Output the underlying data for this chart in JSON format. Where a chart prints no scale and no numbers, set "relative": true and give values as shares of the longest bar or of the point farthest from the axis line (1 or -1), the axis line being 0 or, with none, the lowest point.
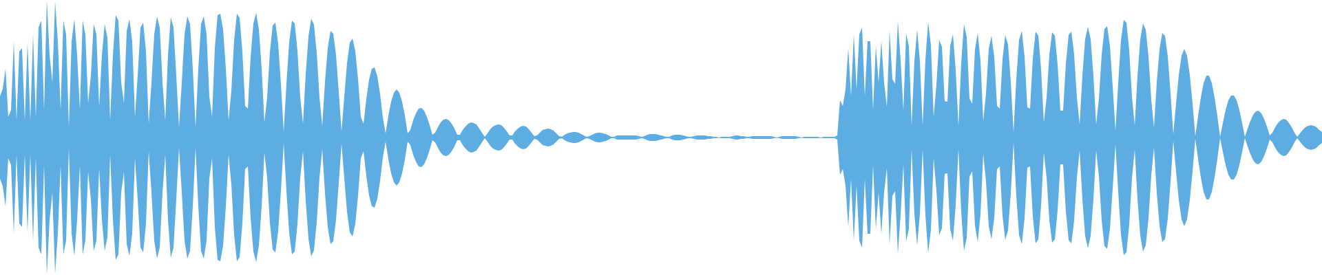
{
  "chart_data": {
    "type": "area",
    "relative": true,
    "categories": [
      null,
      null,
      null,
      null,
      null,
      null,
      null,
      null,
      null,
      null,
      null,
      null,
      null,
      null,
      null,
      null,
      null,
      null,
      null,
      null,
      null,
      null,
      null,
      null,
      null,
      null,
      null,
      null,
      null,
      null,
      null,
      null,
      null,
      null,
      null,
      null,
      null,
      null,
      null,
      null,
      null,
      null,
      null,
      null,
      null,
      null,
      null,
      null,
      null,
      null,
      null,
      null,
      null,
      null,
      null,
      null,
      null,
      null,
      null,
      null,
      null,
      null,
      null,
      null,
      null,
      null,
      null,
      null,
      null,
      null,
      null,
      null,
      null,
      null,
      null,
      null,
      null,
      null,
      null,
      null,
      null,
      null,
      null,
      null,
      null,
      null,
      null,
      null,
      null,
      null,
      null,
      null,
      null,
      null,
      null,
      null,
      null,
      null,
      null,
      null,
      null,
      null,
      null,
      null,
      null,
      null,
      null,
      null,
      null,
      null,
      null,
      null,
      null,
      null,
      null,
      null,
      null,
      null,
      null,
      null,
      null,
      null,
      null,
      null,
      null,
      null,
      null,
      null,
      null,
      null,
      null,
      null,
      null,
      null,
      null,
      null,
      null,
      null,
      null,
      null,
      null,
      null,
      null,
      null,
      null,
      null,
      null,
      null,
      null,
      null,
      null,
      null,
      null,
      null,
      null,
      null,
      null,
      null,
      null,
      null,
      null,
      null,
      null,
      null,
      null,
      null,
      null,
      null,
      null,
      null,
      null,
      null,
      null,
      null,
      null,
      null,
      null,
      null,
      null,
      null,
      null,
      null,
      null,
      null,
      null,
      null,
      null,
      null,
      null,
      null,
      null,
      null,
      null,
      null,
      null,
      null,
      null,
      null,
      null,
      null,
      null,
      null,
      null,
      null,
      null,
      null,
      null,
      null,
      null,
      null,
      null,
      null,
      null,
      null,
      null,
      null,
      null,
      null,
      null,
      null,
      null,
      null,
      null,
      null,
      null,
      null,
      null,
      null,
      null,
      null,
      null,
      null,
      null,
      null,
      null,
      null,
      null,
      null,
      null,
      null,
      null,
      null,
      null,
      null,
      null,
      null,
      null,
      null,
      null,
      null,
      null,
      null,
      null,
      null,
      null,
      null,
      null,
      null,
      null,
      null,
      null,
      null,
      null,
      null,
      null,
      null,
      null,
      null,
      null,
      null,
      null,
      null,
      null,
      null,
      null,
      null,
      null,
      null,
      null,
      null,
      null,
      null,
      null,
      null,
      null,
      null,
      null,
      null,
      null,
      null,
      null,
      null,
      null,
      null,
      null,
      null,
      null,
      null,
      null,
      null,
      null,
      null,
      null,
      null,
      null,
      null,
      null,
      null,
      null,
      null,
      null,
      null,
      null,
      null,
      null,
      null,
      null,
      null,
      null,
      null,
      null,
      null,
      null,
      null,
      null,
      null,
      null,
      null,
      null,
      null,
      null,
      null,
      null,
      null,
      null,
      null,
      null,
      null,
      null,
      null,
      null,
      null,
      null,
      null,
      null,
      null,
      null,
      null,
      null,
      null,
      null,
      null,
      null,
      null,
      null,
      null,
      null,
      null,
      null,
      null,
      null,
      null,
      null,
      null,
      null,
      null,
      null,
      null,
      null,
      null,
      null,
      null,
      null,
      null,
      null,
      null,
      null,
      null,
      null,
      null,
      null,
      null,
      null,
      null,
      null,
      null,
      null,
      null,
      null,
      null,
      null,
      null,
      null,
      null,
      null,
      null,
      null,
      null,
      null,
      null,
      null,
      null,
      null,
      null,
      null,
      null,
      null,
      null,
      null,
      null,
      null,
      null,
      null,
      null,
      null,
      null,
      null,
      null,
      null,
      null,
      null,
      null,
      null,
      null,
      null,
      null,
      null,
      null,
      null,
      null,
      null,
      null,
      null,
      null,
      null,
      null,
      null,
      null,
      null,
      null,
      null,
      null,
      null,
      null,
      null,
      null,
      null,
      null,
      null,
      null,
      null,
      null,
      null,
      null,
      null,
      null,
      null,
      null,
      null,
      null,
      null,
      null,
      null,
      null,
      null,
      null,
      null,
      null,
      null,
      null,
      null,
      null,
      null,
      null,
      null,
      null,
      null,
      null,
      null,
      null,
      null
    ],
    "series": [
      {
        "color": "#5dade2",
        "values": [
          0.3,
          0.355,
          0.5,
          0.15,
          0.2,
          0.7,
          0.125,
          0.625,
          0.65,
          0.125,
          0.69,
          0.125,
          0.75,
          0.15,
          0.8,
          0.85,
          0.2,
          1,
          0.6,
          0.4,
          0.99,
          0.7,
          0.2,
          0.85,
          0.75,
          0.075,
          0.7,
          0.86,
          0.6,
          0.2,
          0.85,
          0.75,
          0.25,
          0.45,
          0.825,
          0.75,
          0.225,
          0.6,
          0.825,
          0.725,
          0.125,
          0.6,
          0.89,
          0.85,
          0.4,
          0.25,
          0.775,
          0.86,
          0.7,
          0.15,
          0.45,
          0.8,
          0.835,
          0.625,
          0.1,
          0.4,
          0.75,
          0.88,
          0.8,
          0.4,
          0.125,
          0.6,
          0.875,
          0.8,
          0.45,
          0.075,
          0.4,
          0.75,
          0.88,
          0.825,
          0.5,
          0.075,
          0.5,
          0.825,
          0.88,
          0.75,
          0.3,
          0.15,
          0.65,
          0.89,
          0.9,
          0.785,
          0.5,
          0.125,
          0.34,
          0.705,
          0.9,
          0.87,
          0.625,
          0.23,
          0.21,
          0.585,
          0.83,
          0.905,
          0.785,
          0.5,
          0.11,
          0.29,
          0.62,
          0.815,
          0.835,
          0.68,
          0.385,
          0.045,
          0.39,
          0.695,
          0.85,
          0.83,
          0.63,
          0.295,
          0.1,
          0.46,
          0.735,
          0.865,
          0.82,
          0.615,
          0.29,
          0.085,
          0.405,
          0.65,
          0.775,
          0.755,
          0.6,
          0.33,
          0.045,
          0.295,
          0.54,
          0.69,
          0.72,
          0.63,
          0.425,
          0.15,
          0.1,
          0.28,
          0.42,
          0.5,
          0.51,
          0.445,
          0.315,
          0.145,
          0.03,
          0.155,
          0.26,
          0.325,
          0.35,
          0.325,
          0.26,
          0.16,
          0.03,
          0.055,
          0.125,
          0.175,
          0.21,
          0.215,
          0.195,
          0.15,
          0.09,
          0.02,
          0.035,
          0.075,
          0.11,
          0.13,
          0.135,
          0.125,
          0.1,
          0.065,
          0.02,
          0.02,
          0.055,
          0.08,
          0.1,
          0.11,
          0.105,
          0.095,
          0.065,
          0.035,
          0.005,
          0.03,
          0.06,
          0.08,
          0.09,
          0.095,
          0.09,
          0.07,
          0.045,
          0.015,
          0.015,
          0.045,
          0.065,
          0.08,
          0.085,
          0.08,
          0.06,
          0.035,
          0.01,
          0.015,
          0.035,
          0.055,
          0.06,
          0.065,
          0.06,
          0.05,
          0.03,
          0.01,
          0.005,
          0.02,
          0.03,
          0.035,
          0.04,
          0.04,
          0.035,
          0.025,
          0.015,
          0.005,
          0.01,
          0.02,
          0.03,
          0.035,
          0.035,
          0.03,
          0.025,
          0.015,
          0.005,
          0.005,
          0.015,
          0.015,
          0.015,
          0.015,
          0.015,
          0.015,
          0.015,
          0.015,
          0.01,
          0.005,
          0.01,
          0.02,
          0.025,
          0.025,
          0.025,
          0.02,
          0.015,
          0.01,
          0.005,
          0.005,
          0.015,
          0.02,
          0.02,
          0.02,
          0.015,
          0.01,
          0.005,
          0.005,
          0.01,
          0.015,
          0.015,
          0.015,
          0.015,
          0.01,
          0.01,
          0.005,
          0.005,
          0,
          0.005,
          0.005,
          0.005,
          0.005,
          0.01,
          0.015,
          0.015,
          0.01,
          0.01,
          0.005,
          0.005,
          0.01,
          0.01,
          0.01,
          0.01,
          0.01,
          0.01,
          0.01,
          0.01,
          0.005,
          0,
          0.005,
          0.01,
          0.01,
          0.01,
          0.01,
          0.01,
          0.01,
          0.005,
          0,
          0.005,
          0.005,
          0.005,
          0.005,
          0.005,
          0.005,
          0,
          0.005,
          0.005,
          0.005,
          0.005,
          0.005,
          0.015,
          0.27,
          0.23,
          0.35,
          0.65,
          0.3,
          0.75,
          0.35,
          0.75,
          0.8,
          0.3,
          0.7,
          0.7,
          0.2,
          0.665,
          0.4,
          0.7,
          0.4,
          0.22,
          0.775,
          0.425,
          0.39,
          0.845,
          0.56,
          0.195,
          0.755,
          0.665,
          0.085,
          0.555,
          0.785,
          0.555,
          0.085,
          0.565,
          0.84,
          0.67,
          0.15,
          0.385,
          0.71,
          0.66,
          0.265,
          0.26,
          0.665,
          0.75,
          0.49,
          0.085,
          0.54,
          0.825,
          0.73,
          0.285,
          0.245,
          0.64,
          0.76,
          0.56,
          0.12,
          0.32,
          0.645,
          0.74,
          0.585,
          0.23,
          0.21,
          0.57,
          0.745,
          0.675,
          0.405,
          0.04,
          0.42,
          0.71,
          0.775,
          0.59,
          0.22,
          0.21,
          0.575,
          0.77,
          0.74,
          0.495,
          0.11,
          0.29,
          0.6,
          0.765,
          0.74,
          0.53,
          0.195,
          0.195,
          0.535,
          0.745,
          0.77,
          0.605,
          0.29,
          0.095,
          0.45,
          0.715,
          0.805,
          0.715,
          0.45,
          0.095,
          0.28,
          0.6,
          0.79,
          0.81,
          0.665,
          0.37,
          0.05,
          0.39,
          0.705,
          0.855,
          0.835,
          0.635,
          0.295,
          0.09,
          0.445,
          0.71,
          0.83,
          0.785,
          0.59,
          0.275,
          0.075,
          0.4,
          0.64,
          0.76,
          0.74,
          0.59,
          0.325,
          0.025,
          0.245,
          0.455,
          0.595,
          0.645,
          0.595,
          0.455,
          0.245,
          0.01,
          0.155,
          0.29,
          0.395,
          0.45,
          0.45,
          0.395,
          0.29,
          0.155,
          0.005,
          0.105,
          0.2,
          0.27,
          0.305,
          0.305,
          0.27,
          0.2,
          0.105,
          0.005,
          0.065,
          0.12,
          0.165,
          0.19,
          0.195,
          0.175,
          0.135,
          0.08,
          0.015,
          0.035,
          0.075,
          0.105,
          0.125,
          0.135,
          0.13,
          0.105,
          0.075,
          0.035,
          0.005,
          0.03,
          0.055,
          0.075,
          0.085,
          0.09,
          0.085,
          0.075,
          0.055,
          0.04
        ]
      },
      {
        "color": "#5dade2",
        "values": [
          -0.3,
          -0.355,
          -0.5,
          -0.15,
          -0.2,
          -0.7,
          -0.125,
          -0.625,
          -0.65,
          -0.125,
          -0.69,
          -0.125,
          -0.75,
          -0.15,
          -0.8,
          -0.85,
          -0.2,
          -1,
          -0.6,
          -0.4,
          -0.99,
          -0.7,
          -0.2,
          -0.85,
          -0.75,
          -0.075,
          -0.7,
          -0.86,
          -0.6,
          -0.2,
          -0.85,
          -0.75,
          -0.25,
          -0.45,
          -0.825,
          -0.75,
          -0.225,
          -0.6,
          -0.825,
          -0.725,
          -0.125,
          -0.6,
          -0.89,
          -0.85,
          -0.4,
          -0.25,
          -0.775,
          -0.86,
          -0.7,
          -0.15,
          -0.45,
          -0.8,
          -0.835,
          -0.625,
          -0.1,
          -0.4,
          -0.75,
          -0.88,
          -0.8,
          -0.4,
          -0.125,
          -0.6,
          -0.875,
          -0.8,
          -0.45,
          -0.075,
          -0.4,
          -0.75,
          -0.88,
          -0.825,
          -0.5,
          -0.075,
          -0.5,
          -0.825,
          -0.88,
          -0.75,
          -0.3,
          -0.15,
          -0.65,
          -0.89,
          -0.9,
          -0.785,
          -0.5,
          -0.125,
          -0.34,
          -0.705,
          -0.9,
          -0.87,
          -0.625,
          -0.23,
          -0.21,
          -0.585,
          -0.83,
          -0.905,
          -0.785,
          -0.5,
          -0.11,
          -0.29,
          -0.62,
          -0.815,
          -0.835,
          -0.68,
          -0.385,
          -0.045,
          -0.39,
          -0.695,
          -0.85,
          -0.83,
          -0.63,
          -0.295,
          -0.1,
          -0.46,
          -0.735,
          -0.865,
          -0.82,
          -0.615,
          -0.29,
          -0.085,
          -0.405,
          -0.65,
          -0.775,
          -0.755,
          -0.6,
          -0.33,
          -0.045,
          -0.295,
          -0.54,
          -0.69,
          -0.72,
          -0.63,
          -0.425,
          -0.15,
          -0.1,
          -0.28,
          -0.42,
          -0.5,
          -0.51,
          -0.445,
          -0.315,
          -0.145,
          -0.03,
          -0.155,
          -0.26,
          -0.325,
          -0.35,
          -0.325,
          -0.26,
          -0.16,
          -0.03,
          -0.055,
          -0.125,
          -0.175,
          -0.21,
          -0.215,
          -0.195,
          -0.15,
          -0.09,
          -0.02,
          -0.035,
          -0.075,
          -0.11,
          -0.13,
          -0.135,
          -0.125,
          -0.1,
          -0.065,
          -0.02,
          -0.02,
          -0.055,
          -0.08,
          -0.1,
          -0.11,
          -0.105,
          -0.095,
          -0.065,
          -0.035,
          -0.005,
          -0.03,
          -0.06,
          -0.08,
          -0.09,
          -0.095,
          -0.09,
          -0.07,
          -0.045,
          -0.015,
          -0.015,
          -0.045,
          -0.065,
          -0.08,
          -0.085,
          -0.08,
          -0.06,
          -0.035,
          -0.01,
          -0.015,
          -0.035,
          -0.055,
          -0.06,
          -0.065,
          -0.06,
          -0.05,
          -0.03,
          -0.01,
          -0.005,
          -0.02,
          -0.03,
          -0.035,
          -0.04,
          -0.04,
          -0.035,
          -0.025,
          -0.015,
          -0.005,
          -0.01,
          -0.02,
          -0.03,
          -0.035,
          -0.035,
          -0.03,
          -0.025,
          -0.015,
          -0.005,
          -0.005,
          -0.015,
          -0.015,
          -0.015,
          -0.015,
          -0.015,
          -0.015,
          -0.015,
          -0.015,
          -0.01,
          -0.005,
          -0.01,
          -0.02,
          -0.025,
          -0.025,
          -0.025,
          -0.02,
          -0.015,
          -0.01,
          -0.005,
          -0.005,
          -0.015,
          -0.02,
          -0.02,
          -0.02,
          -0.015,
          -0.01,
          -0.005,
          -0.005,
          -0.01,
          -0.015,
          -0.015,
          -0.015,
          -0.015,
          -0.01,
          -0.01,
          -0.005,
          -0.005,
          0,
          -0.005,
          -0.005,
          -0.005,
          -0.005,
          -0.01,
          -0.015,
          -0.015,
          -0.01,
          -0.01,
          -0.005,
          -0.005,
          -0.01,
          -0.01,
          -0.01,
          -0.01,
          -0.01,
          -0.01,
          -0.01,
          -0.01,
          -0.005,
          0,
          -0.005,
          -0.01,
          -0.01,
          -0.01,
          -0.01,
          -0.01,
          -0.01,
          -0.005,
          0,
          -0.005,
          -0.005,
          -0.005,
          -0.005,
          -0.005,
          -0.005,
          0,
          -0.005,
          -0.005,
          -0.005,
          -0.005,
          -0.005,
          -0.015,
          -0.27,
          -0.23,
          -0.35,
          -0.65,
          -0.3,
          -0.75,
          -0.35,
          -0.75,
          -0.8,
          -0.3,
          -0.7,
          -0.7,
          -0.2,
          -0.665,
          -0.4,
          -0.7,
          -0.4,
          -0.22,
          -0.775,
          -0.425,
          -0.39,
          -0.845,
          -0.56,
          -0.195,
          -0.755,
          -0.665,
          -0.085,
          -0.555,
          -0.785,
          -0.555,
          -0.085,
          -0.565,
          -0.84,
          -0.67,
          -0.15,
          -0.385,
          -0.71,
          -0.66,
          -0.265,
          -0.26,
          -0.665,
          -0.75,
          -0.49,
          -0.085,
          -0.54,
          -0.825,
          -0.73,
          -0.285,
          -0.245,
          -0.64,
          -0.76,
          -0.56,
          -0.12,
          -0.32,
          -0.645,
          -0.74,
          -0.585,
          -0.23,
          -0.21,
          -0.57,
          -0.745,
          -0.675,
          -0.405,
          -0.04,
          -0.42,
          -0.71,
          -0.775,
          -0.59,
          -0.22,
          -0.21,
          -0.575,
          -0.77,
          -0.74,
          -0.495,
          -0.11,
          -0.29,
          -0.6,
          -0.765,
          -0.74,
          -0.53,
          -0.195,
          -0.195,
          -0.535,
          -0.745,
          -0.77,
          -0.605,
          -0.29,
          -0.095,
          -0.45,
          -0.715,
          -0.805,
          -0.715,
          -0.45,
          -0.095,
          -0.28,
          -0.6,
          -0.79,
          -0.81,
          -0.665,
          -0.37,
          -0.05,
          -0.39,
          -0.705,
          -0.855,
          -0.835,
          -0.635,
          -0.295,
          -0.09,
          -0.445,
          -0.71,
          -0.83,
          -0.785,
          -0.59,
          -0.275,
          -0.075,
          -0.4,
          -0.64,
          -0.76,
          -0.74,
          -0.59,
          -0.325,
          -0.025,
          -0.245,
          -0.455,
          -0.595,
          -0.645,
          -0.595,
          -0.455,
          -0.245,
          -0.01,
          -0.155,
          -0.29,
          -0.395,
          -0.45,
          -0.45,
          -0.395,
          -0.29,
          -0.155,
          -0.005,
          -0.105,
          -0.2,
          -0.27,
          -0.305,
          -0.305,
          -0.27,
          -0.2,
          -0.105,
          -0.005,
          -0.065,
          -0.12,
          -0.165,
          -0.19,
          -0.195,
          -0.175,
          -0.135,
          -0.08,
          -0.015,
          -0.035,
          -0.075,
          -0.105,
          -0.125,
          -0.135,
          -0.13,
          -0.105,
          -0.075,
          -0.035,
          -0.005,
          -0.03,
          -0.055,
          -0.075,
          -0.085,
          -0.09,
          -0.085,
          -0.075,
          -0.055,
          -0.04
        ]
      }
    ]
  }
}
